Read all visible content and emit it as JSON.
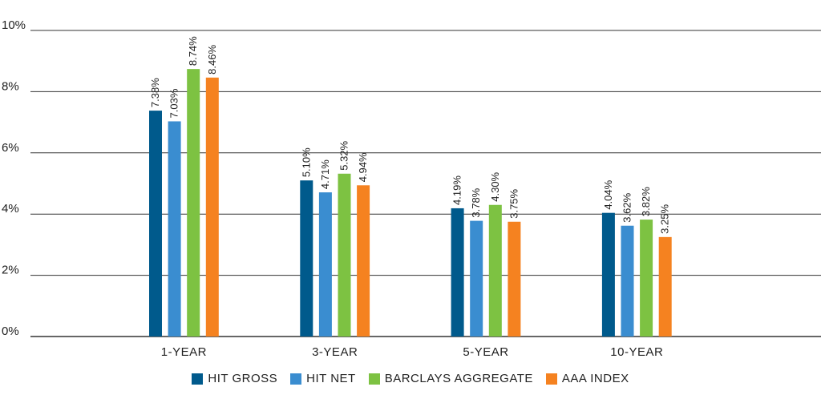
{
  "chart_data": {
    "type": "bar",
    "categories": [
      "1-YEAR",
      "3-YEAR",
      "5-YEAR",
      "10-YEAR"
    ],
    "series": [
      {
        "name": "HIT GROSS",
        "color": "#005A8C",
        "values": [
          7.38,
          5.1,
          4.19,
          4.04
        ],
        "labels": [
          "7.38%",
          "5.10%",
          "4.19%",
          "4.04%"
        ]
      },
      {
        "name": "HIT NET",
        "color": "#3A8DD0",
        "values": [
          7.03,
          4.71,
          3.78,
          3.62
        ],
        "labels": [
          "7.03%",
          "4.71%",
          "3.78%",
          "3.62%"
        ]
      },
      {
        "name": "BARCLAYS AGGREGATE",
        "color": "#7DC242",
        "values": [
          8.74,
          5.32,
          4.3,
          3.82
        ],
        "labels": [
          "8.74%",
          "5.32%",
          "4.30%",
          "3.82%"
        ]
      },
      {
        "name": "AAA INDEX",
        "color": "#F58220",
        "values": [
          8.46,
          4.94,
          3.75,
          3.25
        ],
        "labels": [
          "8.46%",
          "4.94%",
          "3.75%",
          "3.25%"
        ]
      }
    ],
    "ylim": [
      0,
      10
    ],
    "yticks": [
      0,
      2,
      4,
      6,
      8,
      10
    ],
    "ytick_labels": [
      "0%",
      "2%",
      "4%",
      "6%",
      "8%",
      "10%"
    ],
    "grid": true,
    "legend_position": "bottom"
  }
}
